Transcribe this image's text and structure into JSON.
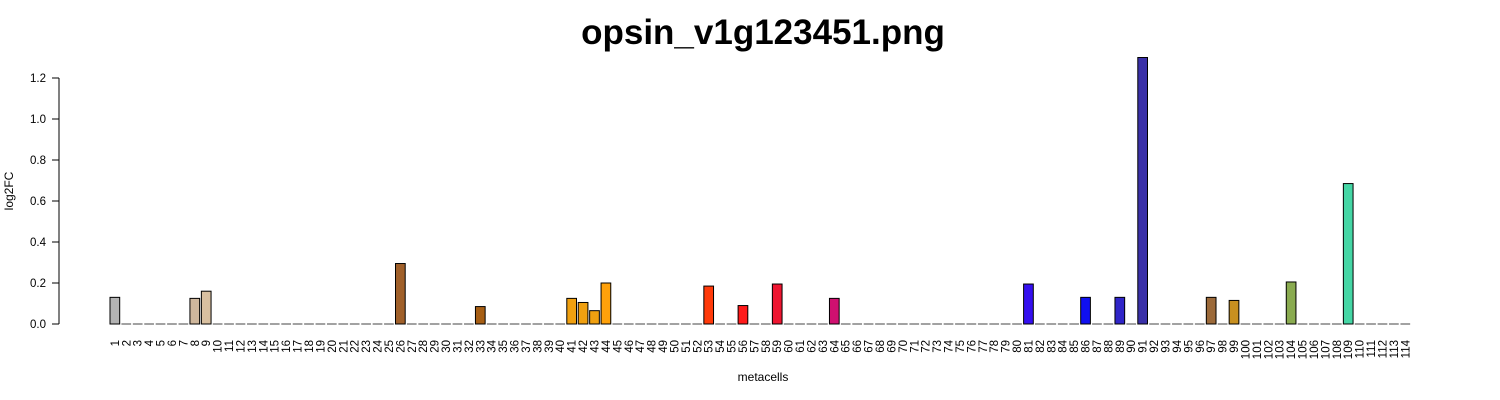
{
  "chart_data": {
    "type": "bar",
    "title": "opsin_v1g123451.png",
    "xlabel": "metacells",
    "ylabel": "log2FC",
    "ylim": [
      0,
      1.2
    ],
    "yticks": [
      "0.0",
      "0.2",
      "0.4",
      "0.6",
      "0.8",
      "1.0",
      "1.2"
    ],
    "grid": false,
    "legend": "none",
    "categories": [
      "1",
      "2",
      "3",
      "4",
      "5",
      "6",
      "7",
      "8",
      "9",
      "10",
      "11",
      "12",
      "13",
      "14",
      "15",
      "16",
      "17",
      "18",
      "19",
      "20",
      "21",
      "22",
      "23",
      "24",
      "25",
      "26",
      "27",
      "28",
      "29",
      "30",
      "31",
      "32",
      "33",
      "34",
      "35",
      "36",
      "37",
      "38",
      "39",
      "40",
      "41",
      "42",
      "43",
      "44",
      "45",
      "46",
      "47",
      "48",
      "49",
      "50",
      "51",
      "52",
      "53",
      "54",
      "55",
      "56",
      "57",
      "58",
      "59",
      "60",
      "61",
      "62",
      "63",
      "64",
      "65",
      "66",
      "67",
      "68",
      "69",
      "70",
      "71",
      "72",
      "73",
      "74",
      "75",
      "76",
      "77",
      "78",
      "79",
      "80",
      "81",
      "82",
      "83",
      "84",
      "85",
      "86",
      "87",
      "88",
      "89",
      "90",
      "91",
      "92",
      "93",
      "94",
      "95",
      "96",
      "97",
      "98",
      "99",
      "100",
      "101",
      "102",
      "103",
      "104",
      "105",
      "106",
      "107",
      "108",
      "109",
      "110",
      "111",
      "112",
      "113",
      "114"
    ],
    "values": [
      0.13,
      0,
      0,
      0,
      0,
      0,
      0,
      0.125,
      0.16,
      0,
      0,
      0,
      0,
      0,
      0,
      0,
      0,
      0,
      0,
      0,
      0,
      0,
      0,
      0,
      0,
      0.295,
      0,
      0,
      0,
      0,
      0,
      0,
      0.085,
      0,
      0,
      0,
      0,
      0,
      0,
      0,
      0.125,
      0.105,
      0.065,
      0.2,
      0,
      0,
      0,
      0,
      0,
      0,
      0,
      0,
      0.185,
      0,
      0,
      0.09,
      0,
      0,
      0.195,
      0,
      0,
      0,
      0,
      0.125,
      0,
      0,
      0,
      0,
      0,
      0,
      0,
      0,
      0,
      0,
      0,
      0,
      0,
      0,
      0,
      0,
      0.195,
      0,
      0,
      0,
      0,
      0.13,
      0,
      0,
      0.13,
      0,
      1.3,
      0,
      0,
      0,
      0,
      0,
      0.13,
      0,
      0.115,
      0,
      0,
      0,
      0,
      0.205,
      0,
      0,
      0,
      0,
      0.685,
      0,
      0,
      0,
      0,
      0
    ],
    "colors": [
      "#b3b3b3",
      "#cfb79c",
      "#cfb79c",
      "#cfb79c",
      "#cfb79c",
      "#cfb79c",
      "#cfb79c",
      "#cfb79c",
      "#d9c0a0",
      "#8b5a2b",
      "#8b5a2b",
      "#8b5a2b",
      "#8b5a2b",
      "#8b5a2b",
      "#8b5a2b",
      "#8b5a2b",
      "#8b5a2b",
      "#8b5a2b",
      "#8b5a2b",
      "#8b5a2b",
      "#8b5a2b",
      "#8b5a2b",
      "#8b5a2b",
      "#8b5a2b",
      "#8b5a2b",
      "#a0602a",
      "#a0602a",
      "#a0602a",
      "#a0602a",
      "#a0602a",
      "#a0602a",
      "#a0602a",
      "#a65e14",
      "#e69a10",
      "#e69a10",
      "#e69a10",
      "#e69a10",
      "#e69a10",
      "#e69a10",
      "#e69a10",
      "#f0a010",
      "#f0a010",
      "#f0a010",
      "#ffa10a",
      "#ff8c00",
      "#ff8c00",
      "#ff8c00",
      "#ff8c00",
      "#ff8c00",
      "#ff8c00",
      "#ff8c00",
      "#ff5a0a",
      "#ff3a0a",
      "#ff2a10",
      "#ff2a10",
      "#ff1a1a",
      "#ff1a1a",
      "#ff1a1a",
      "#ee1530",
      "#dd1040",
      "#dd1040",
      "#dd1040",
      "#d81060",
      "#d01070",
      "#3a20e0",
      "#3a20e0",
      "#3a20e0",
      "#3a20e0",
      "#3a20e0",
      "#3a20e0",
      "#3a20e0",
      "#3a20e0",
      "#3a20e0",
      "#3a20e0",
      "#3a20e0",
      "#3a20e0",
      "#3a20e0",
      "#3a20e0",
      "#3a20e0",
      "#3a20e0",
      "#3510f0",
      "#2a10f5",
      "#2a10f5",
      "#2a10f5",
      "#2a10f5",
      "#1010f0",
      "#1010f0",
      "#2a20d0",
      "#3025c8",
      "#3a30b0",
      "#3a30a8",
      "#806030",
      "#806030",
      "#806030",
      "#806030",
      "#806030",
      "#9c6a3a",
      "#b07a30",
      "#c89020",
      "#8aa050",
      "#8aa050",
      "#8aa050",
      "#8aa050",
      "#8aab50",
      "#40d0a0",
      "#40d0a0",
      "#40d0a0",
      "#40d0a0",
      "#45d6a5",
      "#40d0a0",
      "#40d0a0",
      "#40d0a0",
      "#40d0a0",
      "#40d0a0"
    ]
  }
}
